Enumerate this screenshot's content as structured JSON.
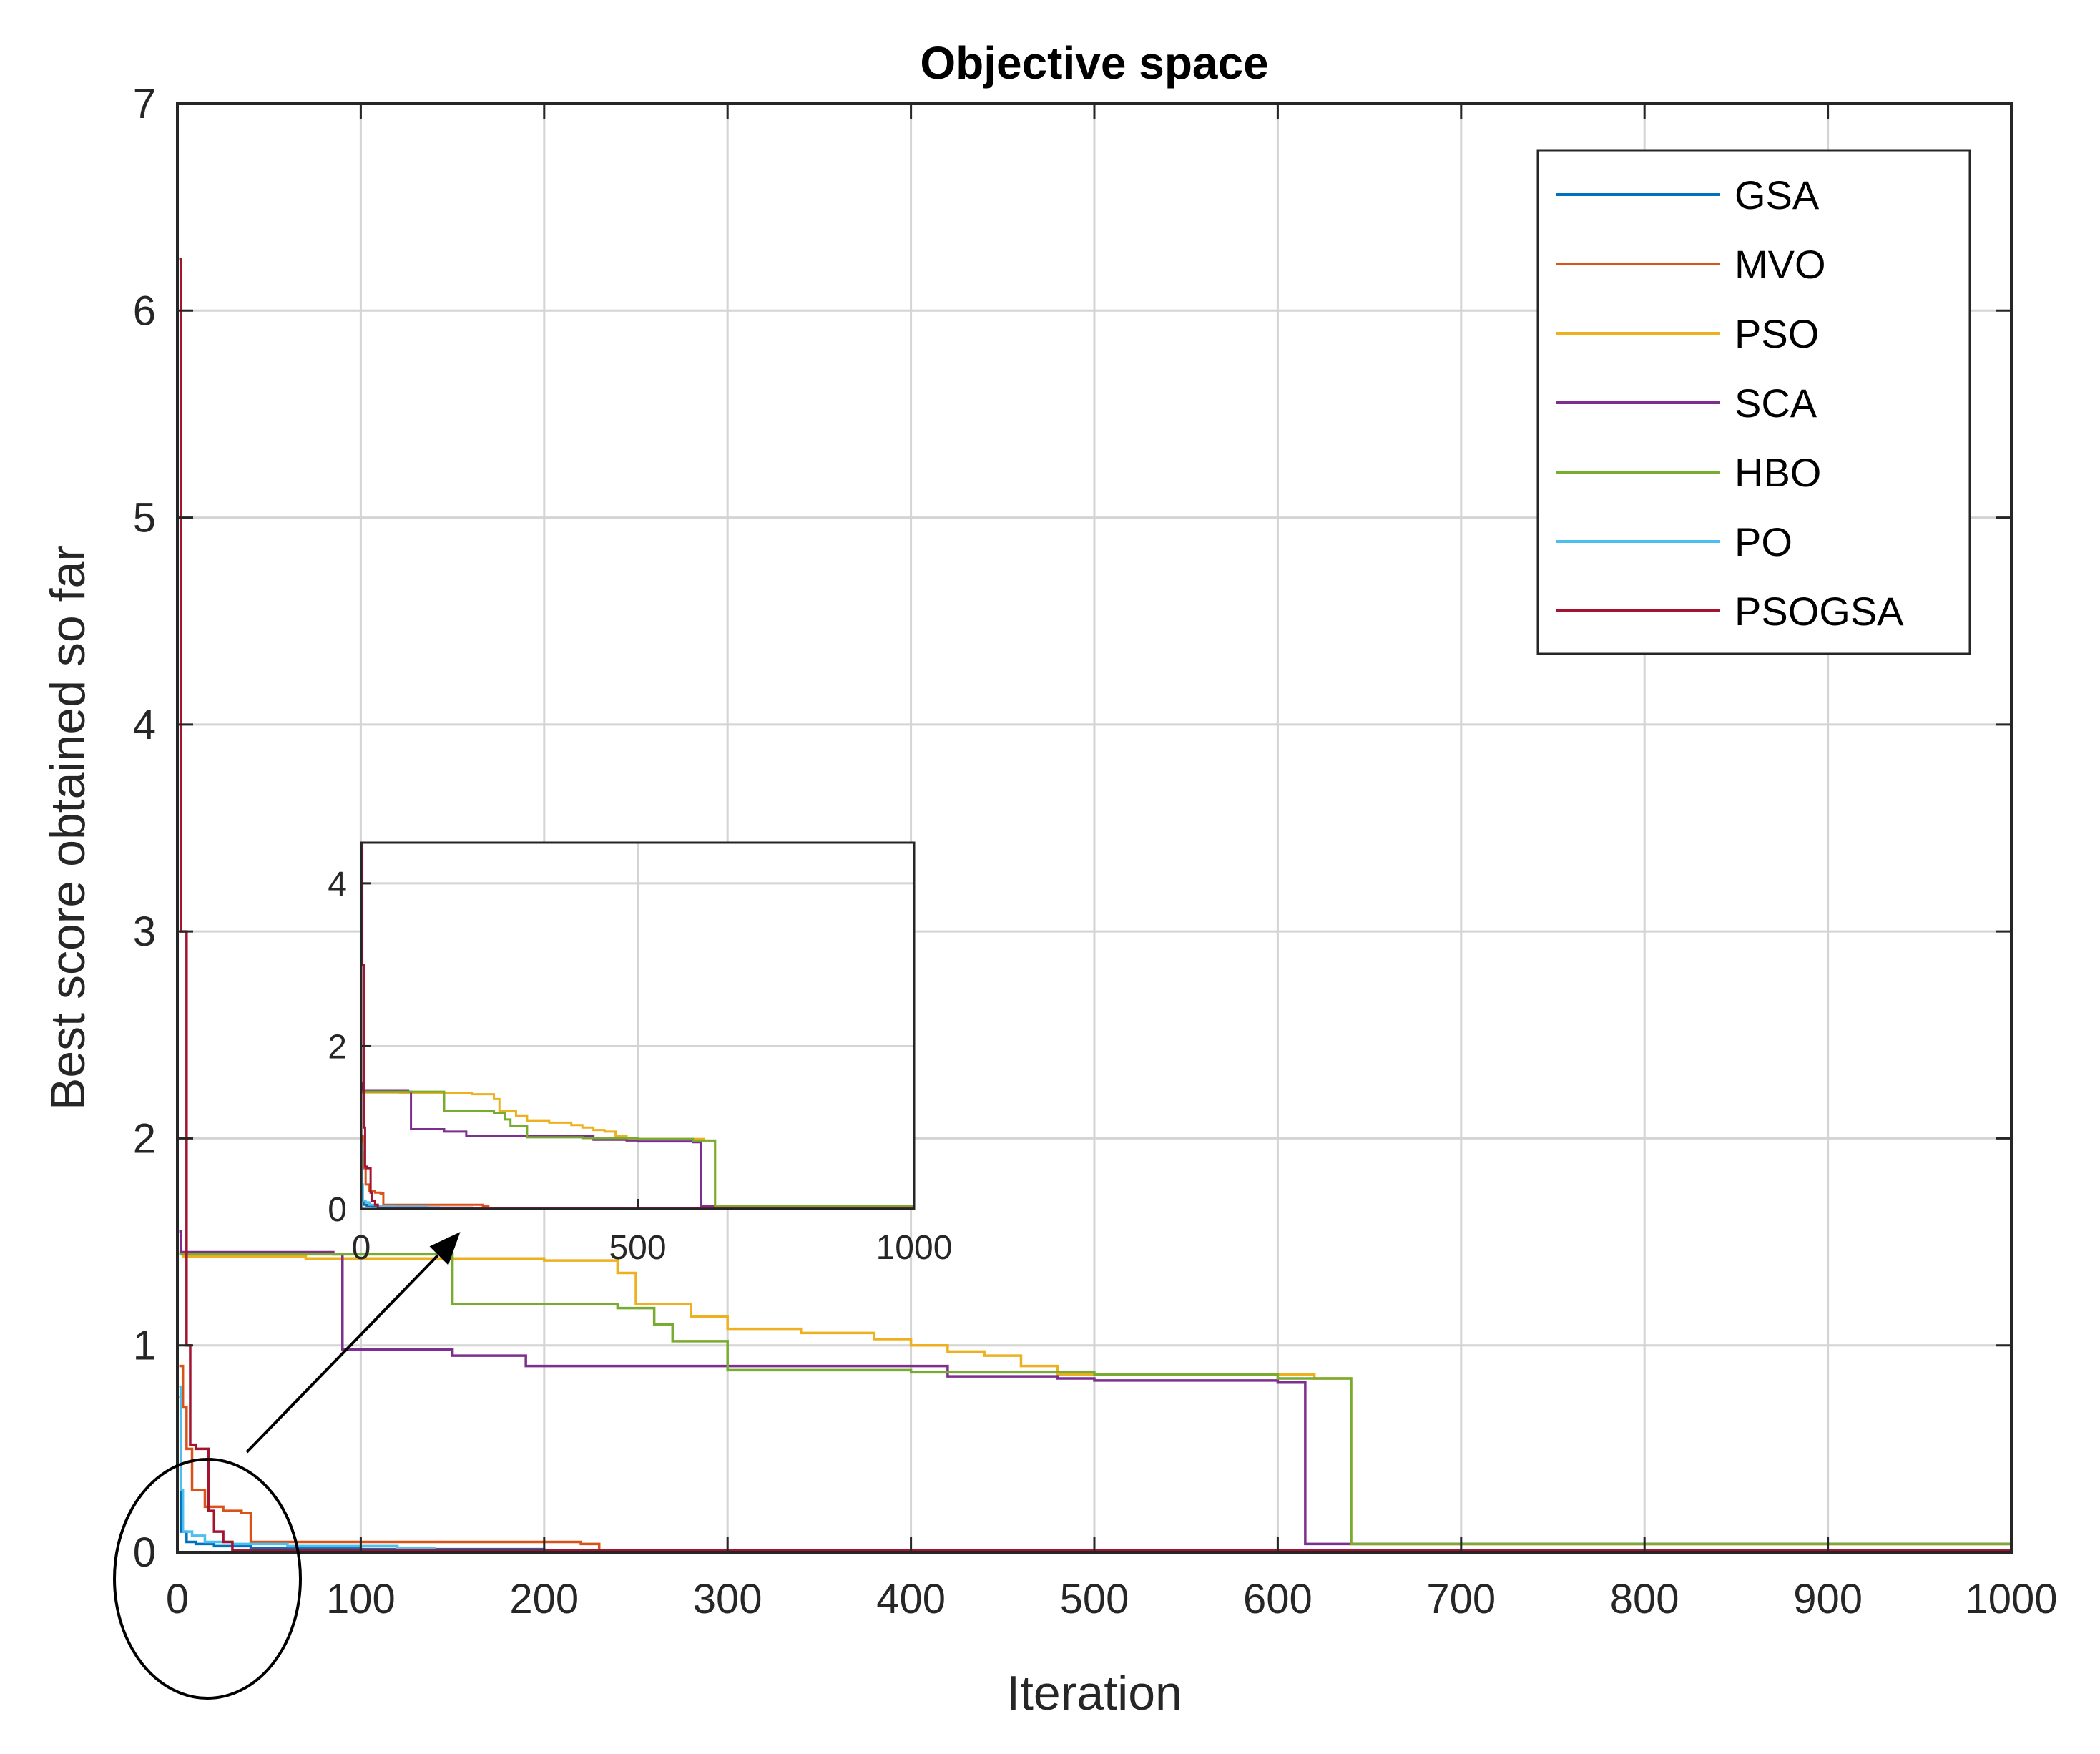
{
  "chart_data": {
    "type": "line",
    "title": "Objective space",
    "xlabel": "Iteration",
    "ylabel": "Best score obtained so far",
    "xlim": [
      0,
      1000
    ],
    "ylim": [
      0,
      7
    ],
    "xticks": [
      0,
      100,
      200,
      300,
      400,
      500,
      600,
      700,
      800,
      900,
      1000
    ],
    "yticks": [
      0,
      1,
      2,
      3,
      4,
      5,
      6,
      7
    ],
    "grid": true,
    "legend_position": "top-right",
    "series": [
      {
        "name": "GSA",
        "color": "#0072BD",
        "x": [
          1,
          2,
          5,
          10,
          20,
          40,
          100,
          200,
          1000
        ],
        "y": [
          0.75,
          0.1,
          0.05,
          0.04,
          0.03,
          0.02,
          0.015,
          0.01,
          0.01
        ]
      },
      {
        "name": "MVO",
        "color": "#D95319",
        "x": [
          1,
          3,
          5,
          8,
          15,
          25,
          35,
          40,
          220,
          230,
          1000
        ],
        "y": [
          0.9,
          0.7,
          0.5,
          0.3,
          0.22,
          0.2,
          0.19,
          0.05,
          0.04,
          0.01,
          0.01
        ]
      },
      {
        "name": "PSO",
        "color": "#EDB120",
        "x": [
          1,
          3,
          70,
          150,
          200,
          240,
          250,
          280,
          300,
          340,
          380,
          400,
          420,
          440,
          460,
          480,
          620,
          640,
          1000
        ],
        "y": [
          1.45,
          1.43,
          1.42,
          1.42,
          1.41,
          1.35,
          1.2,
          1.14,
          1.08,
          1.06,
          1.03,
          1.0,
          0.97,
          0.95,
          0.9,
          0.86,
          0.84,
          0.04,
          0.03
        ]
      },
      {
        "name": "SCA",
        "color": "#7E2F8E",
        "x": [
          1,
          2,
          85,
          90,
          150,
          190,
          300,
          420,
          480,
          500,
          600,
          615,
          1000
        ],
        "y": [
          1.55,
          1.45,
          1.44,
          0.98,
          0.95,
          0.9,
          0.9,
          0.85,
          0.84,
          0.83,
          0.82,
          0.04,
          0.03
        ]
      },
      {
        "name": "HBO",
        "color": "#77AC30",
        "x": [
          1,
          150,
          240,
          260,
          270,
          300,
          400,
          500,
          600,
          640,
          1000
        ],
        "y": [
          1.44,
          1.2,
          1.18,
          1.1,
          1.02,
          0.88,
          0.87,
          0.86,
          0.84,
          0.04,
          0.03
        ]
      },
      {
        "name": "PO",
        "color": "#4DBEEE",
        "x": [
          1,
          2,
          3,
          8,
          15,
          30,
          60,
          120,
          140,
          1000
        ],
        "y": [
          0.8,
          0.3,
          0.1,
          0.08,
          0.05,
          0.04,
          0.03,
          0.02,
          0.01,
          0.01
        ]
      },
      {
        "name": "PSOGSA",
        "color": "#A2142F",
        "x": [
          1,
          2,
          5,
          7,
          10,
          13,
          17,
          20,
          25,
          30,
          1000
        ],
        "y": [
          6.25,
          3.0,
          1.0,
          0.52,
          0.5,
          0.5,
          0.2,
          0.1,
          0.05,
          0.01,
          0.0
        ]
      }
    ],
    "inset": {
      "xlim": [
        0,
        1000
      ],
      "ylim": [
        0,
        4.5
      ],
      "xticks": [
        0,
        500,
        1000
      ],
      "yticks": [
        0,
        2,
        4
      ],
      "grid": true
    },
    "annotations": [
      "ellipse around region near origin",
      "arrow pointing to inset zoom"
    ]
  }
}
